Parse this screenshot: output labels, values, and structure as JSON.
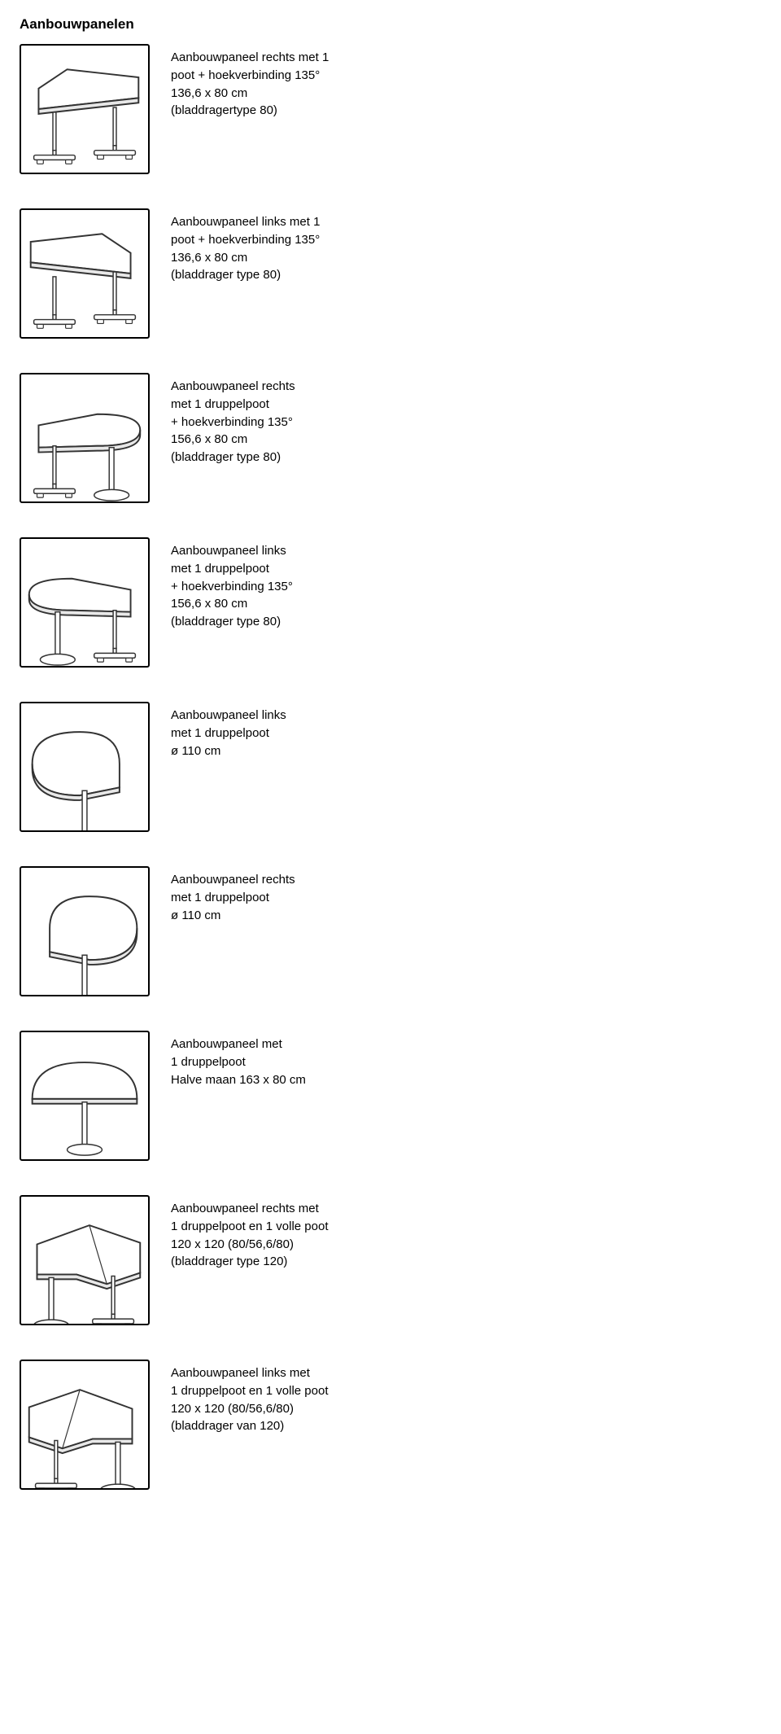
{
  "page_title": "Aanbouwpanelen",
  "items": [
    {
      "svg": "trap_right",
      "lines": [
        "Aanbouwpaneel rechts met 1",
        "poot + hoekverbinding 135°",
        "136,6 x 80 cm",
        "(bladdragertype 80)"
      ]
    },
    {
      "svg": "trap_left",
      "lines": [
        "Aanbouwpaneel links met 1",
        "poot + hoekverbinding 135°",
        "136,6 x 80 cm",
        "(bladdrager type 80)"
      ]
    },
    {
      "svg": "round_right",
      "lines": [
        "Aanbouwpaneel rechts",
        "met 1 druppelpoot",
        "+ hoekverbinding 135°",
        "156,6 x 80 cm",
        "(bladdrager type 80)"
      ]
    },
    {
      "svg": "round_left",
      "lines": [
        "Aanbouwpaneel links",
        "met 1 druppelpoot",
        "+ hoekverbinding 135°",
        "156,6 x 80 cm",
        "(bladdrager type 80)"
      ]
    },
    {
      "svg": "circle_left",
      "lines": [
        "Aanbouwpaneel links",
        "met 1 druppelpoot",
        "ø 110 cm"
      ]
    },
    {
      "svg": "circle_right",
      "lines": [
        "Aanbouwpaneel rechts",
        "met 1 druppelpoot",
        "ø 110 cm"
      ]
    },
    {
      "svg": "halfmoon",
      "lines": [
        "Aanbouwpaneel met",
        "1 druppelpoot",
        "Halve maan 163 x 80 cm"
      ]
    },
    {
      "svg": "corner_right",
      "lines": [
        "Aanbouwpaneel rechts met",
        "1 druppelpoot en 1 volle poot",
        "120 x 120 (80/56,6/80)",
        "(bladdrager type 120)"
      ]
    },
    {
      "svg": "corner_left",
      "lines": [
        "Aanbouwpaneel links met",
        "1 druppelpoot en 1 volle poot",
        "120 x 120 (80/56,6/80)",
        "(bladdrager van 120)"
      ]
    }
  ],
  "colors": {
    "stroke": "#333333",
    "fill": "#ffffff",
    "shade": "#e8e8e8"
  }
}
